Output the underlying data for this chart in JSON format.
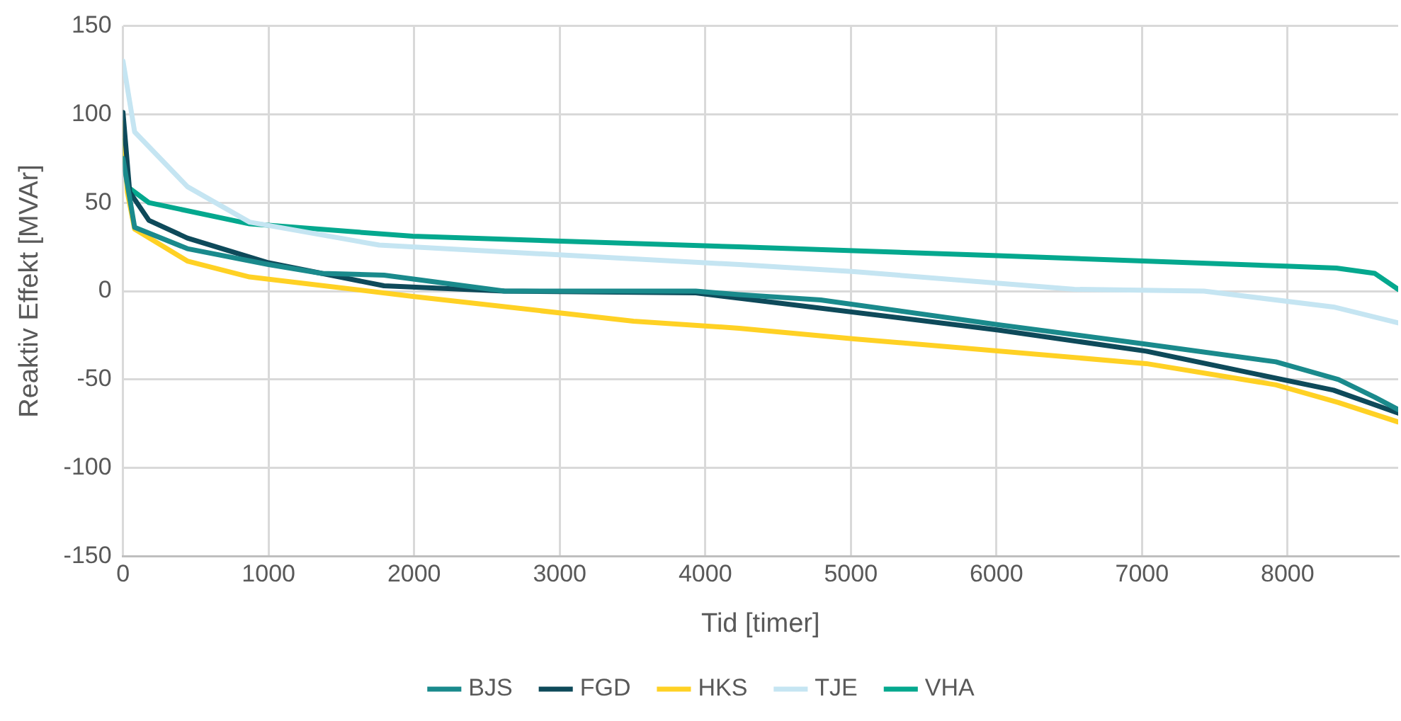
{
  "chart_data": {
    "type": "line",
    "xlabel": "Tid [timer]",
    "ylabel": "Reaktiv Effekt [MVAr]",
    "xlim": [
      0,
      8760
    ],
    "xticks": [
      0,
      1000,
      2000,
      3000,
      4000,
      5000,
      6000,
      7000,
      8000
    ],
    "ylim": [
      -150,
      150
    ],
    "yticks": [
      -150,
      -100,
      -50,
      0,
      50,
      100,
      150
    ],
    "grid": true,
    "legend": "bottom",
    "marker": "none",
    "line_style": "solid",
    "series": [
      {
        "name": "BJS",
        "color": "#1a8a8c",
        "x": [
          0,
          80,
          442,
          1000,
          1365,
          1793,
          2620,
          3935,
          4232,
          4793,
          6012,
          7030,
          7920,
          8350,
          8600,
          8760
        ],
        "values": [
          75,
          36,
          24,
          15,
          10,
          9,
          0,
          0,
          -2,
          -5,
          -19,
          -30,
          -40,
          -50,
          -60,
          -67
        ]
      },
      {
        "name": "FGD",
        "color": "#0e4a5a",
        "x": [
          0,
          46,
          178,
          442,
          1000,
          1793,
          2620,
          3935,
          4232,
          6012,
          7030,
          8316,
          8760
        ],
        "values": [
          101,
          56,
          40,
          30,
          16,
          3,
          0,
          -1,
          -4,
          -22,
          -34,
          -56,
          -69
        ]
      },
      {
        "name": "HKS",
        "color": "#ffd124",
        "x": [
          0,
          30,
          80,
          442,
          870,
          1990,
          3507,
          4232,
          5023,
          7030,
          7920,
          8350,
          8760
        ],
        "values": [
          95,
          56,
          35,
          17,
          8,
          -3,
          -17,
          -21,
          -27,
          -41,
          -53,
          -63,
          -74
        ]
      },
      {
        "name": "TJE",
        "color": "#c5e5f2",
        "x": [
          0,
          80,
          443,
          870,
          1760,
          4232,
          5023,
          6536,
          7426,
          8316,
          8760
        ],
        "values": [
          130,
          90,
          59,
          39,
          26,
          15,
          11,
          1,
          0,
          -9,
          -18
        ]
      },
      {
        "name": "VHA",
        "color": "#04a88e",
        "x": [
          0,
          30,
          178,
          870,
          1990,
          4232,
          6012,
          8020,
          8336,
          8600,
          8760
        ],
        "values": [
          85,
          59,
          50,
          38,
          31,
          25,
          20,
          14,
          13,
          10,
          1
        ]
      }
    ]
  }
}
